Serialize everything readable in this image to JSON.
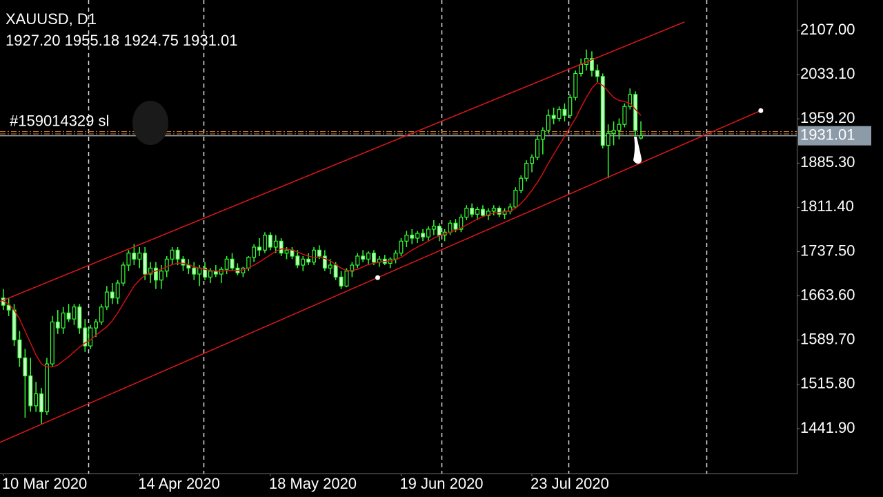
{
  "chart_data": {
    "type": "candlestick",
    "title": "XAUUSD, D1",
    "subtitle": "1927.20 1955.18 1924.75 1931.01",
    "xlim": [
      -0.6,
      145.6
    ],
    "ylim": [
      1366.9,
      2157.7
    ],
    "xticks": [
      {
        "value": 0,
        "label": "10 Mar 2020"
      },
      {
        "value": 25,
        "label": "14 Apr 2020"
      },
      {
        "value": 49,
        "label": "18 May 2020"
      },
      {
        "value": 73,
        "label": "19 Jun 2020"
      },
      {
        "value": 97,
        "label": "23 Jul 2020"
      }
    ],
    "xgrid": [
      15.6,
      36.8,
      80.4,
      103.7,
      129
    ],
    "yticks": [
      {
        "value": 2107,
        "label": "2107.00"
      },
      {
        "value": 2033.1,
        "label": "2033.10"
      },
      {
        "value": 1959.2,
        "label": "1959.20"
      },
      {
        "value": 1885.3,
        "label": "1885.30"
      },
      {
        "value": 1811.4,
        "label": "1811.40"
      },
      {
        "value": 1737.5,
        "label": "1737.50"
      },
      {
        "value": 1663.6,
        "label": "1663.60"
      },
      {
        "value": 1589.7,
        "label": "1589.70"
      },
      {
        "value": 1515.8,
        "label": "1515.80"
      },
      {
        "value": 1441.9,
        "label": "1441.90"
      }
    ],
    "x": [
      0,
      1,
      2,
      3,
      4,
      5,
      6,
      7,
      8,
      9,
      10,
      11,
      12,
      13,
      14,
      15,
      16,
      17,
      18,
      19,
      20,
      21,
      22,
      23,
      24,
      25,
      26,
      27,
      28,
      29,
      30,
      31,
      32,
      33,
      34,
      35,
      36,
      37,
      38,
      39,
      40,
      41,
      42,
      43,
      44,
      45,
      46,
      47,
      48,
      49,
      50,
      51,
      52,
      53,
      54,
      55,
      56,
      57,
      58,
      59,
      60,
      61,
      62,
      63,
      64,
      65,
      66,
      67,
      68,
      69,
      70,
      71,
      72,
      73,
      74,
      75,
      76,
      77,
      78,
      79,
      80,
      81,
      82,
      83,
      84,
      85,
      86,
      87,
      88,
      89,
      90,
      91,
      92,
      93,
      94,
      95,
      96,
      97,
      98,
      99,
      100,
      101,
      102,
      103,
      104,
      105,
      106,
      107,
      108,
      109,
      110,
      111,
      112,
      113,
      114,
      115,
      116,
      117
    ],
    "series": [
      {
        "type": "candlestick",
        "up_color": "#000000",
        "down_color": "#c8ffc8",
        "color": "#33ff33",
        "values": [
          [
            1660,
            1675,
            1640,
            1648
          ],
          [
            1648,
            1660,
            1630,
            1640
          ],
          [
            1640,
            1650,
            1580,
            1590
          ],
          [
            1590,
            1605,
            1545,
            1560
          ],
          [
            1560,
            1575,
            1460,
            1530
          ],
          [
            1530,
            1560,
            1470,
            1480
          ],
          [
            1480,
            1520,
            1470,
            1500
          ],
          [
            1500,
            1510,
            1450,
            1470
          ],
          [
            1470,
            1560,
            1465,
            1550
          ],
          [
            1550,
            1630,
            1545,
            1620
          ],
          [
            1620,
            1640,
            1600,
            1610
          ],
          [
            1610,
            1645,
            1600,
            1635
          ],
          [
            1635,
            1650,
            1620,
            1625
          ],
          [
            1625,
            1650,
            1615,
            1645
          ],
          [
            1645,
            1650,
            1600,
            1610
          ],
          [
            1610,
            1625,
            1570,
            1580
          ],
          [
            1580,
            1615,
            1575,
            1610
          ],
          [
            1610,
            1625,
            1595,
            1620
          ],
          [
            1620,
            1650,
            1615,
            1645
          ],
          [
            1645,
            1680,
            1640,
            1670
          ],
          [
            1670,
            1685,
            1650,
            1660
          ],
          [
            1660,
            1690,
            1650,
            1685
          ],
          [
            1685,
            1720,
            1680,
            1715
          ],
          [
            1715,
            1740,
            1705,
            1735
          ],
          [
            1735,
            1750,
            1715,
            1725
          ],
          [
            1725,
            1745,
            1710,
            1735
          ],
          [
            1735,
            1745,
            1690,
            1700
          ],
          [
            1700,
            1720,
            1685,
            1710
          ],
          [
            1710,
            1720,
            1675,
            1690
          ],
          [
            1690,
            1715,
            1675,
            1705
          ],
          [
            1705,
            1730,
            1695,
            1725
          ],
          [
            1725,
            1745,
            1715,
            1740
          ],
          [
            1740,
            1745,
            1715,
            1725
          ],
          [
            1725,
            1730,
            1705,
            1715
          ],
          [
            1715,
            1725,
            1700,
            1710
          ],
          [
            1710,
            1720,
            1690,
            1700
          ],
          [
            1700,
            1715,
            1680,
            1710
          ],
          [
            1710,
            1720,
            1690,
            1695
          ],
          [
            1695,
            1710,
            1685,
            1705
          ],
          [
            1705,
            1715,
            1695,
            1700
          ],
          [
            1700,
            1712,
            1685,
            1708
          ],
          [
            1708,
            1730,
            1700,
            1725
          ],
          [
            1725,
            1735,
            1705,
            1710
          ],
          [
            1710,
            1718,
            1698,
            1702
          ],
          [
            1702,
            1712,
            1695,
            1710
          ],
          [
            1710,
            1730,
            1705,
            1728
          ],
          [
            1728,
            1750,
            1720,
            1745
          ],
          [
            1745,
            1760,
            1730,
            1740
          ],
          [
            1740,
            1770,
            1735,
            1765
          ],
          [
            1765,
            1770,
            1740,
            1745
          ],
          [
            1745,
            1765,
            1735,
            1755
          ],
          [
            1755,
            1760,
            1730,
            1735
          ],
          [
            1735,
            1745,
            1725,
            1740
          ],
          [
            1740,
            1745,
            1725,
            1730
          ],
          [
            1730,
            1740,
            1710,
            1715
          ],
          [
            1715,
            1730,
            1705,
            1725
          ],
          [
            1725,
            1735,
            1715,
            1720
          ],
          [
            1720,
            1745,
            1715,
            1740
          ],
          [
            1740,
            1748,
            1725,
            1730
          ],
          [
            1730,
            1740,
            1705,
            1710
          ],
          [
            1710,
            1725,
            1700,
            1715
          ],
          [
            1715,
            1720,
            1690,
            1695
          ],
          [
            1695,
            1705,
            1675,
            1680
          ],
          [
            1680,
            1710,
            1678,
            1705
          ],
          [
            1705,
            1720,
            1695,
            1715
          ],
          [
            1715,
            1735,
            1710,
            1730
          ],
          [
            1730,
            1740,
            1720,
            1725
          ],
          [
            1725,
            1738,
            1715,
            1735
          ],
          [
            1735,
            1740,
            1715,
            1720
          ],
          [
            1720,
            1730,
            1712,
            1725
          ],
          [
            1725,
            1732,
            1715,
            1718
          ],
          [
            1718,
            1728,
            1710,
            1725
          ],
          [
            1725,
            1740,
            1718,
            1735
          ],
          [
            1735,
            1760,
            1730,
            1755
          ],
          [
            1755,
            1772,
            1745,
            1765
          ],
          [
            1765,
            1775,
            1750,
            1760
          ],
          [
            1760,
            1772,
            1752,
            1768
          ],
          [
            1768,
            1775,
            1755,
            1762
          ],
          [
            1762,
            1780,
            1755,
            1775
          ],
          [
            1775,
            1790,
            1765,
            1780
          ],
          [
            1780,
            1785,
            1755,
            1765
          ],
          [
            1765,
            1775,
            1755,
            1770
          ],
          [
            1770,
            1790,
            1765,
            1785
          ],
          [
            1785,
            1792,
            1770,
            1775
          ],
          [
            1775,
            1800,
            1770,
            1795
          ],
          [
            1795,
            1815,
            1790,
            1810
          ],
          [
            1810,
            1818,
            1795,
            1800
          ],
          [
            1800,
            1812,
            1790,
            1808
          ],
          [
            1808,
            1815,
            1795,
            1798
          ],
          [
            1798,
            1810,
            1790,
            1805
          ],
          [
            1805,
            1815,
            1798,
            1810
          ],
          [
            1810,
            1814,
            1795,
            1800
          ],
          [
            1800,
            1810,
            1792,
            1805
          ],
          [
            1805,
            1818,
            1800,
            1812
          ],
          [
            1812,
            1845,
            1810,
            1840
          ],
          [
            1840,
            1865,
            1835,
            1860
          ],
          [
            1860,
            1890,
            1855,
            1885
          ],
          [
            1885,
            1900,
            1870,
            1895
          ],
          [
            1895,
            1930,
            1890,
            1925
          ],
          [
            1925,
            1945,
            1900,
            1940
          ],
          [
            1940,
            1975,
            1935,
            1965
          ],
          [
            1965,
            1978,
            1950,
            1960
          ],
          [
            1960,
            1980,
            1955,
            1975
          ],
          [
            1975,
            1985,
            1955,
            1965
          ],
          [
            1965,
            2000,
            1960,
            1995
          ],
          [
            1995,
            2040,
            1990,
            2035
          ],
          [
            2035,
            2060,
            2030,
            2050
          ],
          [
            2050,
            2075,
            2040,
            2060
          ],
          [
            2060,
            2072,
            2030,
            2040
          ],
          [
            2040,
            2050,
            2020,
            2030
          ],
          [
            2030,
            2035,
            1910,
            1915
          ],
          [
            1915,
            1950,
            1860,
            1935
          ],
          [
            1935,
            1955,
            1915,
            1940
          ],
          [
            1940,
            1960,
            1925,
            1950
          ],
          [
            1950,
            1985,
            1945,
            1980
          ],
          [
            1980,
            2010,
            1975,
            2000
          ],
          [
            2000,
            2005,
            1930,
            1940
          ],
          [
            1927.2,
            1955.18,
            1924.75,
            1931.01
          ]
        ]
      },
      {
        "type": "line",
        "color": "#d01010",
        "values": [
          1655,
          1650,
          1640,
          1625,
          1605,
          1585,
          1565,
          1550,
          1545,
          1545,
          1548,
          1555,
          1562,
          1570,
          1578,
          1585,
          1590,
          1598,
          1605,
          1612,
          1622,
          1635,
          1650,
          1665,
          1680,
          1690,
          1698,
          1702,
          1705,
          1708,
          1712,
          1716,
          1718,
          1718,
          1716,
          1712,
          1710,
          1708,
          1706,
          1705,
          1705,
          1706,
          1706,
          1706,
          1707,
          1710,
          1715,
          1720,
          1726,
          1732,
          1738,
          1742,
          1742,
          1740,
          1737,
          1733,
          1730,
          1728,
          1728,
          1726,
          1722,
          1716,
          1710,
          1706,
          1706,
          1708,
          1712,
          1716,
          1718,
          1720,
          1721,
          1722,
          1724,
          1728,
          1734,
          1740,
          1745,
          1750,
          1755,
          1760,
          1764,
          1767,
          1770,
          1773,
          1777,
          1782,
          1787,
          1792,
          1796,
          1799,
          1802,
          1803,
          1804,
          1805,
          1810,
          1818,
          1828,
          1840,
          1853,
          1868,
          1885,
          1900,
          1915,
          1930,
          1945,
          1960,
          1978,
          1995,
          2010,
          2020,
          2015,
          2005,
          1995,
          1990,
          1988,
          1985,
          1975,
          1965
        ]
      }
    ],
    "trendlines": [
      {
        "color": "#e01818",
        "points": [
          [
            -0.6,
            1654
          ],
          [
            125,
            2121
          ]
        ]
      },
      {
        "color": "#e01818",
        "extend": "left",
        "anchors_shown": true,
        "points": [
          [
            68.7,
            1694
          ],
          [
            139,
            1973
          ]
        ]
      }
    ],
    "last_price": 1931.01,
    "orders": [
      {
        "label": "#159014329 sl",
        "value": 1938,
        "color": "#d9822b"
      },
      {
        "value": 1934,
        "color": "#d9822b"
      }
    ]
  }
}
